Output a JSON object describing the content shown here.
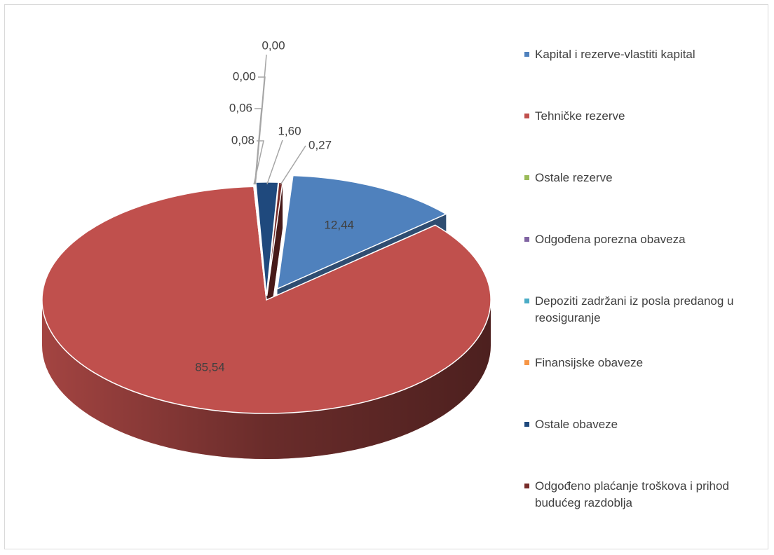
{
  "chart_data": {
    "type": "pie",
    "categories": [
      "Kapital i rezerve-vlastiti kapital",
      "Tehničke rezerve",
      "Ostale rezerve",
      "Odgođena porezna obaveza",
      "Depoziti zadržani iz posla predanog u reosiguranje",
      "Finansijske obaveze",
      "Ostale obaveze",
      "Odgođeno plaćanje troškova i prihod budućeg razdoblja"
    ],
    "values": [
      12.44,
      85.54,
      0.08,
      0.06,
      0.0,
      0.0,
      1.6,
      0.27
    ],
    "value_labels": [
      "12,44",
      "85,54",
      "0,08",
      "0,06",
      "0,00",
      "0,00",
      "1,60",
      "0,27"
    ],
    "colors": [
      "#4f81bd",
      "#c0504d",
      "#9bbb59",
      "#8064a2",
      "#4bacc6",
      "#f79646",
      "#1f497d",
      "#772c2a"
    ],
    "legend": "right"
  }
}
